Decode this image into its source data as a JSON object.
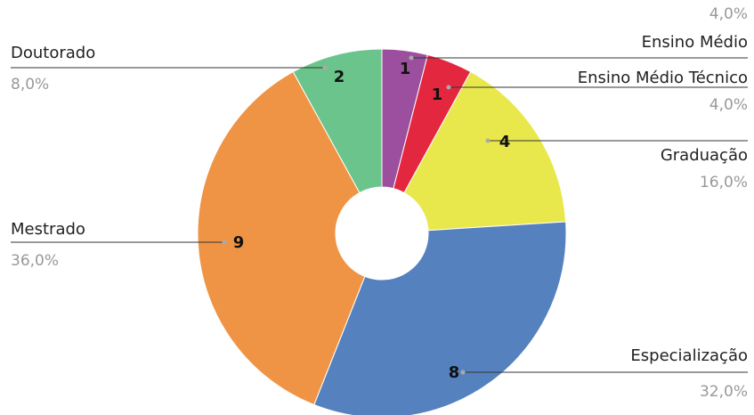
{
  "chart_data": {
    "type": "donut",
    "categories": [
      "Ensino Médio",
      "Ensino Médio Técnico",
      "Graduação",
      "Especialização",
      "Mestrado",
      "Doutorado"
    ],
    "values": [
      1,
      1,
      4,
      8,
      9,
      2
    ],
    "percent_labels": [
      "4,0%",
      "4,0%",
      "16,0%",
      "32,0%",
      "36,0%",
      "8,0%"
    ],
    "colors": [
      "#9c4f9f",
      "#e3273f",
      "#e8e84c",
      "#5582bf",
      "#ef9444",
      "#6bc48b"
    ]
  }
}
